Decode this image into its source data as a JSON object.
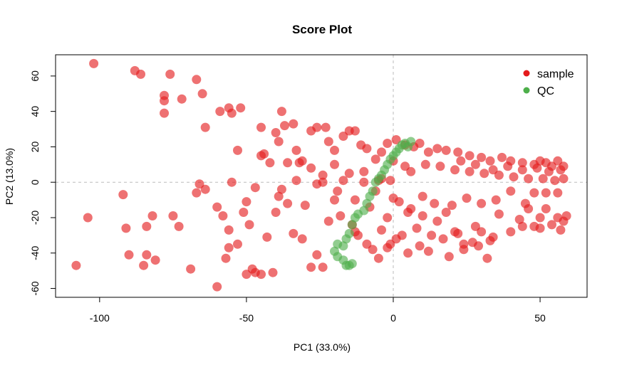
{
  "chart_data": {
    "type": "scatter",
    "title": "Score Plot",
    "xlabel": "PC1 (33.0%)",
    "ylabel": "PC2 (13.0%)",
    "xlim": [
      -115,
      66
    ],
    "ylim": [
      -65,
      72
    ],
    "x_ticks": [
      -100,
      -50,
      0,
      50
    ],
    "y_ticks": [
      -60,
      -40,
      -20,
      0,
      20,
      40,
      60
    ],
    "zero_lines": true,
    "legend_position": "top-right",
    "series": [
      {
        "name": "sample",
        "color": "#E41A1C",
        "points": [
          [
            -102,
            67
          ],
          [
            -88,
            63
          ],
          [
            -86,
            61
          ],
          [
            -76,
            61
          ],
          [
            -78,
            49
          ],
          [
            -78,
            46
          ],
          [
            -78,
            39
          ],
          [
            -72,
            47
          ],
          [
            -67,
            58
          ],
          [
            -65,
            50
          ],
          [
            -64,
            31
          ],
          [
            -59,
            40
          ],
          [
            -56,
            42
          ],
          [
            -55,
            39
          ],
          [
            -52,
            42
          ],
          [
            -53,
            18
          ],
          [
            -45,
            31
          ],
          [
            -45,
            15
          ],
          [
            -44,
            16
          ],
          [
            -38,
            40
          ],
          [
            -40,
            28
          ],
          [
            -39,
            23
          ],
          [
            -37,
            32
          ],
          [
            -34,
            33
          ],
          [
            -33,
            18
          ],
          [
            -31,
            12
          ],
          [
            -28,
            29
          ],
          [
            -26,
            31
          ],
          [
            -23,
            31
          ],
          [
            -22,
            23
          ],
          [
            -20,
            18
          ],
          [
            -17,
            26
          ],
          [
            -15,
            29
          ],
          [
            -13,
            29
          ],
          [
            -11,
            21
          ],
          [
            -9,
            19
          ],
          [
            -6,
            13
          ],
          [
            -4,
            17
          ],
          [
            -2,
            22
          ],
          [
            1,
            24
          ],
          [
            4,
            21
          ],
          [
            7,
            20
          ],
          [
            9,
            22
          ],
          [
            12,
            17
          ],
          [
            15,
            19
          ],
          [
            18,
            18
          ],
          [
            22,
            17
          ],
          [
            26,
            15
          ],
          [
            30,
            14
          ],
          [
            33,
            12
          ],
          [
            37,
            14
          ],
          [
            40,
            12
          ],
          [
            44,
            11
          ],
          [
            48,
            10
          ],
          [
            50,
            12
          ],
          [
            52,
            11
          ],
          [
            54,
            9
          ],
          [
            56,
            12
          ],
          [
            58,
            9
          ],
          [
            57,
            7
          ],
          [
            -20,
            10
          ],
          [
            -15,
            5
          ],
          [
            -10,
            6
          ],
          [
            -5,
            1
          ],
          [
            -28,
            8
          ],
          [
            -24,
            4
          ],
          [
            -32,
            11
          ],
          [
            -36,
            11
          ],
          [
            -42,
            11
          ],
          [
            -4,
            2
          ],
          [
            -92,
            -7
          ],
          [
            -104,
            -20
          ],
          [
            -108,
            -47
          ],
          [
            -91,
            -26
          ],
          [
            -90,
            -41
          ],
          [
            -84,
            -41
          ],
          [
            -85,
            -47
          ],
          [
            -81,
            -44
          ],
          [
            -84,
            -25
          ],
          [
            -82,
            -19
          ],
          [
            -75,
            -19
          ],
          [
            -73,
            -25
          ],
          [
            -69,
            -49
          ],
          [
            -67,
            -6
          ],
          [
            -64,
            -4
          ],
          [
            -60,
            -14
          ],
          [
            -58,
            -19
          ],
          [
            -56,
            -27
          ],
          [
            -56,
            -37
          ],
          [
            -57,
            -43
          ],
          [
            -53,
            -35
          ],
          [
            -51,
            -17
          ],
          [
            -50,
            -11
          ],
          [
            -49,
            -24
          ],
          [
            -50,
            -52
          ],
          [
            -48,
            -49
          ],
          [
            -45,
            -52
          ],
          [
            -41,
            -51
          ],
          [
            -43,
            -31
          ],
          [
            -40,
            -17
          ],
          [
            -39,
            -8
          ],
          [
            -36,
            -12
          ],
          [
            -34,
            -29
          ],
          [
            -30,
            -13
          ],
          [
            -28,
            -48
          ],
          [
            -26,
            -41
          ],
          [
            -24,
            -48
          ],
          [
            -22,
            -22
          ],
          [
            -20,
            -10
          ],
          [
            -18,
            -19
          ],
          [
            -14,
            -24
          ],
          [
            -12,
            -30
          ],
          [
            -9,
            -35
          ],
          [
            -7,
            -38
          ],
          [
            -4,
            -27
          ],
          [
            -2,
            -20
          ],
          [
            -1,
            -35
          ],
          [
            2,
            -11
          ],
          [
            5,
            -17
          ],
          [
            10,
            -8
          ],
          [
            14,
            -12
          ],
          [
            18,
            -17
          ],
          [
            21,
            -28
          ],
          [
            24,
            -35
          ],
          [
            27,
            -34
          ],
          [
            30,
            -28
          ],
          [
            33,
            -33
          ],
          [
            36,
            -18
          ],
          [
            40,
            -28
          ],
          [
            43,
            -21
          ],
          [
            46,
            -15
          ],
          [
            48,
            -25
          ],
          [
            50,
            -20
          ],
          [
            52,
            -15
          ],
          [
            54,
            -24
          ],
          [
            56,
            -20
          ],
          [
            58,
            -22
          ],
          [
            59,
            -19
          ],
          [
            56,
            -6
          ],
          [
            52,
            -6
          ],
          [
            48,
            -6
          ],
          [
            45,
            -12
          ],
          [
            40,
            -5
          ],
          [
            35,
            -10
          ],
          [
            30,
            -12
          ],
          [
            25,
            -9
          ],
          [
            20,
            -13
          ],
          [
            15,
            -22
          ],
          [
            10,
            -19
          ],
          [
            6,
            -15
          ],
          [
            3,
            -30
          ],
          [
            8,
            -26
          ],
          [
            12,
            -39
          ],
          [
            17,
            -32
          ],
          [
            22,
            -29
          ],
          [
            28,
            -25
          ],
          [
            32,
            -43
          ],
          [
            44,
            -25
          ],
          [
            50,
            -26
          ],
          [
            57,
            -27
          ],
          [
            -60,
            -59
          ],
          [
            -47,
            -51
          ],
          [
            -31,
            -32
          ],
          [
            -13,
            -28
          ],
          [
            -6,
            -5
          ],
          [
            -26,
            -1
          ],
          [
            -19,
            -5
          ],
          [
            -13,
            -10
          ],
          [
            -8,
            -14
          ],
          [
            0,
            -9
          ],
          [
            -66,
            -1
          ],
          [
            -55,
            0
          ],
          [
            -47,
            -3
          ],
          [
            -38,
            -4
          ],
          [
            -33,
            1
          ],
          [
            -24,
            0
          ],
          [
            -17,
            1
          ],
          [
            -10,
            0
          ],
          [
            -1,
            1
          ],
          [
            4,
            9
          ],
          [
            0,
            12
          ],
          [
            6,
            6
          ],
          [
            11,
            10
          ],
          [
            16,
            9
          ],
          [
            21,
            7
          ],
          [
            26,
            6
          ],
          [
            31,
            5
          ],
          [
            36,
            4
          ],
          [
            41,
            3
          ],
          [
            46,
            2
          ],
          [
            51,
            2
          ],
          [
            55,
            1
          ],
          [
            58,
            2
          ],
          [
            53,
            6
          ],
          [
            49,
            8
          ],
          [
            44,
            7
          ],
          [
            39,
            9
          ],
          [
            34,
            7
          ],
          [
            28,
            10
          ],
          [
            23,
            12
          ],
          [
            -5,
            -43
          ],
          [
            -2,
            -37
          ],
          [
            1,
            -32
          ],
          [
            5,
            -40
          ],
          [
            9,
            -36
          ],
          [
            13,
            -30
          ],
          [
            19,
            -42
          ],
          [
            24,
            -38
          ],
          [
            29,
            -36
          ],
          [
            34,
            -31
          ]
        ]
      },
      {
        "name": "QC",
        "color": "#4DAF4A",
        "points": [
          [
            -20,
            -39
          ],
          [
            -19,
            -42
          ],
          [
            -17,
            -44
          ],
          [
            -16,
            -47
          ],
          [
            -15,
            -47
          ],
          [
            -14,
            -46
          ],
          [
            -19,
            -35
          ],
          [
            -17,
            -36
          ],
          [
            -16,
            -32
          ],
          [
            -15,
            -29
          ],
          [
            -14,
            -24
          ],
          [
            -13,
            -20
          ],
          [
            -12,
            -18
          ],
          [
            -10,
            -16
          ],
          [
            -9,
            -12
          ],
          [
            -8,
            -8
          ],
          [
            -7,
            -5
          ],
          [
            -6,
            0
          ],
          [
            -5,
            2
          ],
          [
            -4,
            4
          ],
          [
            -3,
            7
          ],
          [
            -2,
            10
          ],
          [
            -1,
            13
          ],
          [
            0,
            15
          ],
          [
            1,
            17
          ],
          [
            2,
            19
          ],
          [
            3,
            21
          ],
          [
            4,
            22
          ],
          [
            5,
            20
          ],
          [
            6,
            23
          ]
        ]
      }
    ]
  }
}
